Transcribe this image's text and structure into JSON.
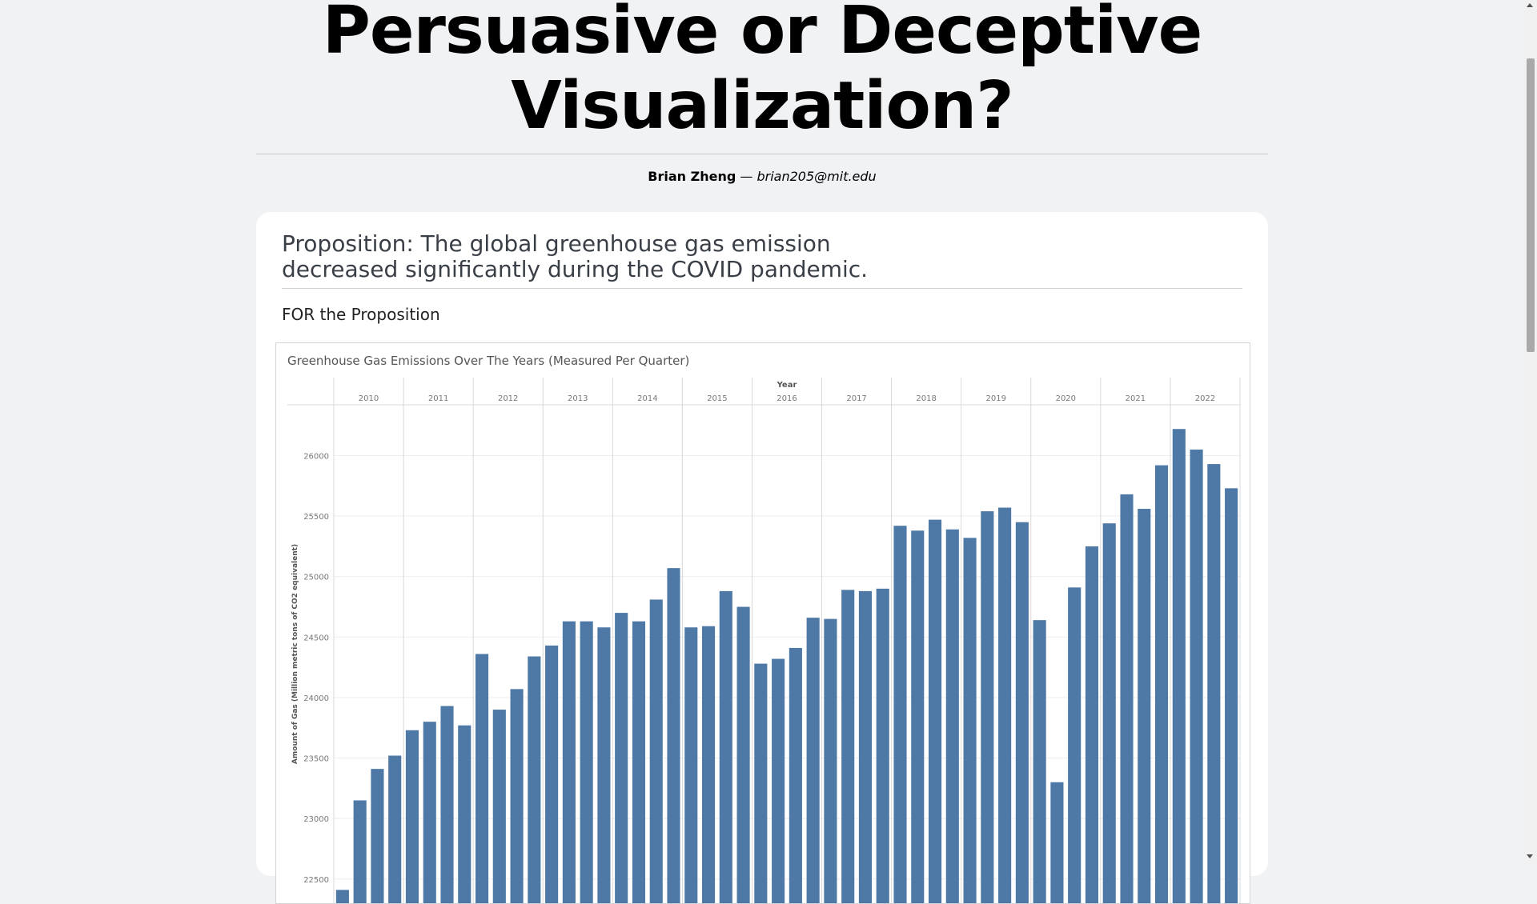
{
  "header": {
    "title": "Persuasive or Deceptive Visualization?",
    "author": "Brian Zheng",
    "separator": "—",
    "email": "brian205@mit.edu"
  },
  "main": {
    "proposition": "Proposition: The global greenhouse gas emission decreased significantly during the COVID pandemic.",
    "section_heading": "FOR the Proposition"
  },
  "colors": {
    "bar": "#4e79a7",
    "page_bg": "#f1f2f4",
    "card_bg": "#ffffff"
  },
  "chart_data": {
    "type": "bar",
    "title": "Greenhouse Gas Emissions Over The Years (Measured Per Quarter)",
    "column_header": "Year",
    "ylabel": "Amount of Gas (Million metric tons of CO2 equivalent)",
    "xlabel": "",
    "years": [
      "2010",
      "2011",
      "2012",
      "2013",
      "2014",
      "2015",
      "2016",
      "2017",
      "2018",
      "2019",
      "2020",
      "2021",
      "2022"
    ],
    "periods_per_year": 4,
    "yticks": [
      22500,
      23000,
      23500,
      24000,
      24500,
      25000,
      25500,
      26000
    ],
    "ylim": [
      22300,
      26420
    ],
    "grid": true,
    "legend": "none",
    "series": [
      {
        "values": [
          22410,
          23150,
          23410,
          23520,
          23730,
          23800,
          23930,
          23770,
          24360,
          23900,
          24070,
          24340,
          24430,
          24630,
          24630,
          24580,
          24700,
          24630,
          24810,
          25070,
          24580,
          24590,
          24880,
          24750,
          24280,
          24320,
          24410,
          24660,
          24650,
          24890,
          24880,
          24900,
          25420,
          25380,
          25470,
          25390,
          25320,
          25540,
          25570,
          25450,
          24640,
          23300,
          24910,
          25250,
          25440,
          25680,
          25560,
          25920,
          26220,
          26050,
          25930,
          25730
        ]
      }
    ]
  }
}
